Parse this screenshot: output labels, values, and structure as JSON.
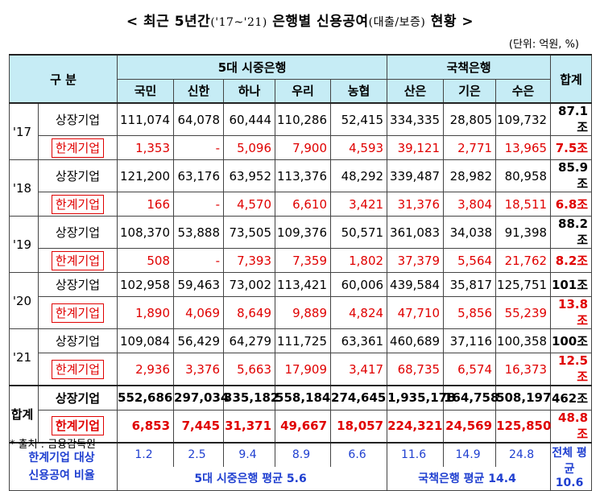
{
  "title": {
    "main_before": "< 최근 5년간",
    "paren": "('17~'21)",
    "main_middle": " 은행별 신용공여",
    "paren2": "(대출/보증)",
    "main_after": " 현황 >"
  },
  "unit": "(단위: 억원, %)",
  "headers": {
    "category": "구 분",
    "commercial_group": "5대 시중은행",
    "policy_group": "국책은행",
    "total": "합계",
    "banks": [
      "국민",
      "신한",
      "하나",
      "우리",
      "농협",
      "산은",
      "기은",
      "수은"
    ]
  },
  "rows": [
    {
      "year": "'17",
      "listed": {
        "label": "상장기업",
        "values": [
          "111,074",
          "64,078",
          "60,444",
          "110,286",
          "52,415",
          "334,335",
          "28,805",
          "109,732"
        ],
        "total": "87.1조"
      },
      "marginal": {
        "label": "한계기업",
        "values": [
          "1,353",
          "-",
          "5,096",
          "7,900",
          "4,593",
          "39,121",
          "2,771",
          "13,965"
        ],
        "total": "7.5조"
      }
    },
    {
      "year": "'18",
      "listed": {
        "label": "상장기업",
        "values": [
          "121,200",
          "63,176",
          "63,952",
          "113,376",
          "48,292",
          "339,487",
          "28,982",
          "80,958"
        ],
        "total": "85.9조"
      },
      "marginal": {
        "label": "한계기업",
        "values": [
          "166",
          "-",
          "4,570",
          "6,610",
          "3,421",
          "31,376",
          "3,804",
          "18,511"
        ],
        "total": "6.8조"
      }
    },
    {
      "year": "'19",
      "listed": {
        "label": "상장기업",
        "values": [
          "108,370",
          "53,888",
          "73,505",
          "109,376",
          "50,571",
          "361,083",
          "34,038",
          "91,398"
        ],
        "total": "88.2조"
      },
      "marginal": {
        "label": "한계기업",
        "values": [
          "508",
          "-",
          "7,393",
          "7,359",
          "1,802",
          "37,379",
          "5,564",
          "21,762"
        ],
        "total": "8.2조"
      }
    },
    {
      "year": "'20",
      "listed": {
        "label": "상장기업",
        "values": [
          "102,958",
          "59,463",
          "73,002",
          "113,421",
          "60,006",
          "439,584",
          "35,817",
          "125,751"
        ],
        "total": "101조"
      },
      "marginal": {
        "label": "한계기업",
        "values": [
          "1,890",
          "4,069",
          "8,649",
          "9,889",
          "4,824",
          "47,710",
          "5,856",
          "55,239"
        ],
        "total": "13.8조"
      }
    },
    {
      "year": "'21",
      "listed": {
        "label": "상장기업",
        "values": [
          "109,084",
          "56,429",
          "64,279",
          "111,725",
          "63,361",
          "460,689",
          "37,116",
          "100,358"
        ],
        "total": "100조"
      },
      "marginal": {
        "label": "한계기업",
        "values": [
          "2,936",
          "3,376",
          "5,663",
          "17,909",
          "3,417",
          "68,735",
          "6,574",
          "16,373"
        ],
        "total": "12.5조"
      }
    }
  ],
  "total_block": {
    "label": "합계",
    "listed": {
      "label": "상장기업",
      "values": [
        "552,686",
        "297,034",
        "335,182",
        "558,184",
        "274,645",
        "1,935,178",
        "164,758",
        "508,197"
      ],
      "total": "462조"
    },
    "marginal": {
      "label": "한계기업",
      "values": [
        "6,853",
        "7,445",
        "31,371",
        "49,667",
        "18,057",
        "224,321",
        "24,569",
        "125,850"
      ],
      "total": "48.8조"
    }
  },
  "ratio": {
    "label_line1": "한계기업 대상",
    "label_line2": "신용공여 비율",
    "values": [
      "1.2",
      "2.5",
      "9.4",
      "8.9",
      "6.6",
      "11.6",
      "14.9",
      "24.8"
    ],
    "commercial_avg": "5대 시중은행 평균 5.6",
    "policy_avg": "국책은행 평균 14.4",
    "overall_label": "전체 평균",
    "overall_value": "10.6"
  },
  "source": "* 출처 : 금융감독원",
  "colors": {
    "header_bg": "#c6ecf5",
    "marginal_text": "#e00000",
    "ratio_text": "#1f3fd0"
  }
}
